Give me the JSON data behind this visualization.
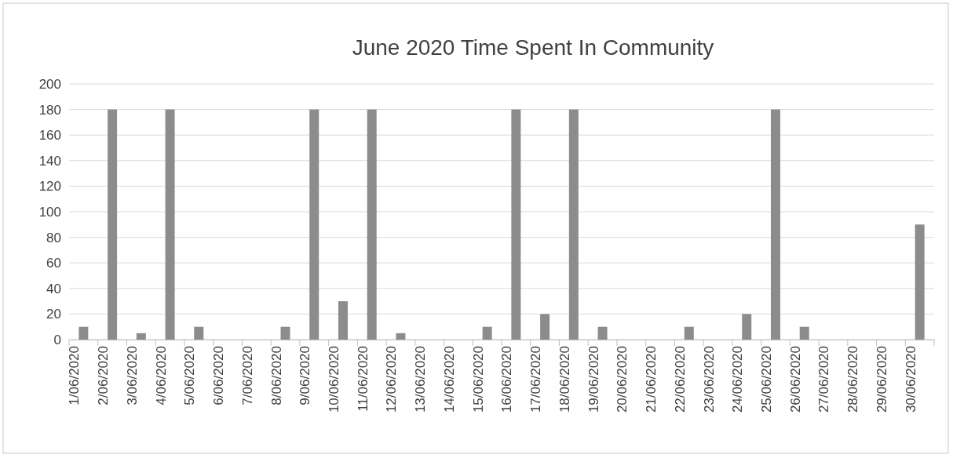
{
  "chart_data": {
    "type": "bar",
    "title": "June 2020 Time Spent In Community",
    "categories": [
      "1/06/2020",
      "2/06/2020",
      "3/06/2020",
      "4/06/2020",
      "5/06/2020",
      "6/06/2020",
      "7/06/2020",
      "8/06/2020",
      "9/06/2020",
      "10/06/2020",
      "11/06/2020",
      "12/06/2020",
      "13/06/2020",
      "14/06/2020",
      "15/06/2020",
      "16/06/2020",
      "17/06/2020",
      "18/06/2020",
      "19/06/2020",
      "20/06/2020",
      "21/06/2020",
      "22/06/2020",
      "23/06/2020",
      "24/06/2020",
      "25/06/2020",
      "26/06/2020",
      "27/06/2020",
      "28/06/2020",
      "29/06/2020",
      "30/06/2020"
    ],
    "values": [
      10,
      180,
      5,
      180,
      10,
      0,
      0,
      10,
      180,
      30,
      180,
      5,
      0,
      0,
      10,
      180,
      20,
      180,
      10,
      0,
      0,
      10,
      0,
      20,
      180,
      10,
      0,
      0,
      0,
      90
    ],
    "color": "#8c8c8c",
    "ylim": [
      0,
      200
    ],
    "yticks": [
      0,
      20,
      40,
      60,
      80,
      100,
      120,
      140,
      160,
      180,
      200
    ],
    "grid": "y"
  }
}
